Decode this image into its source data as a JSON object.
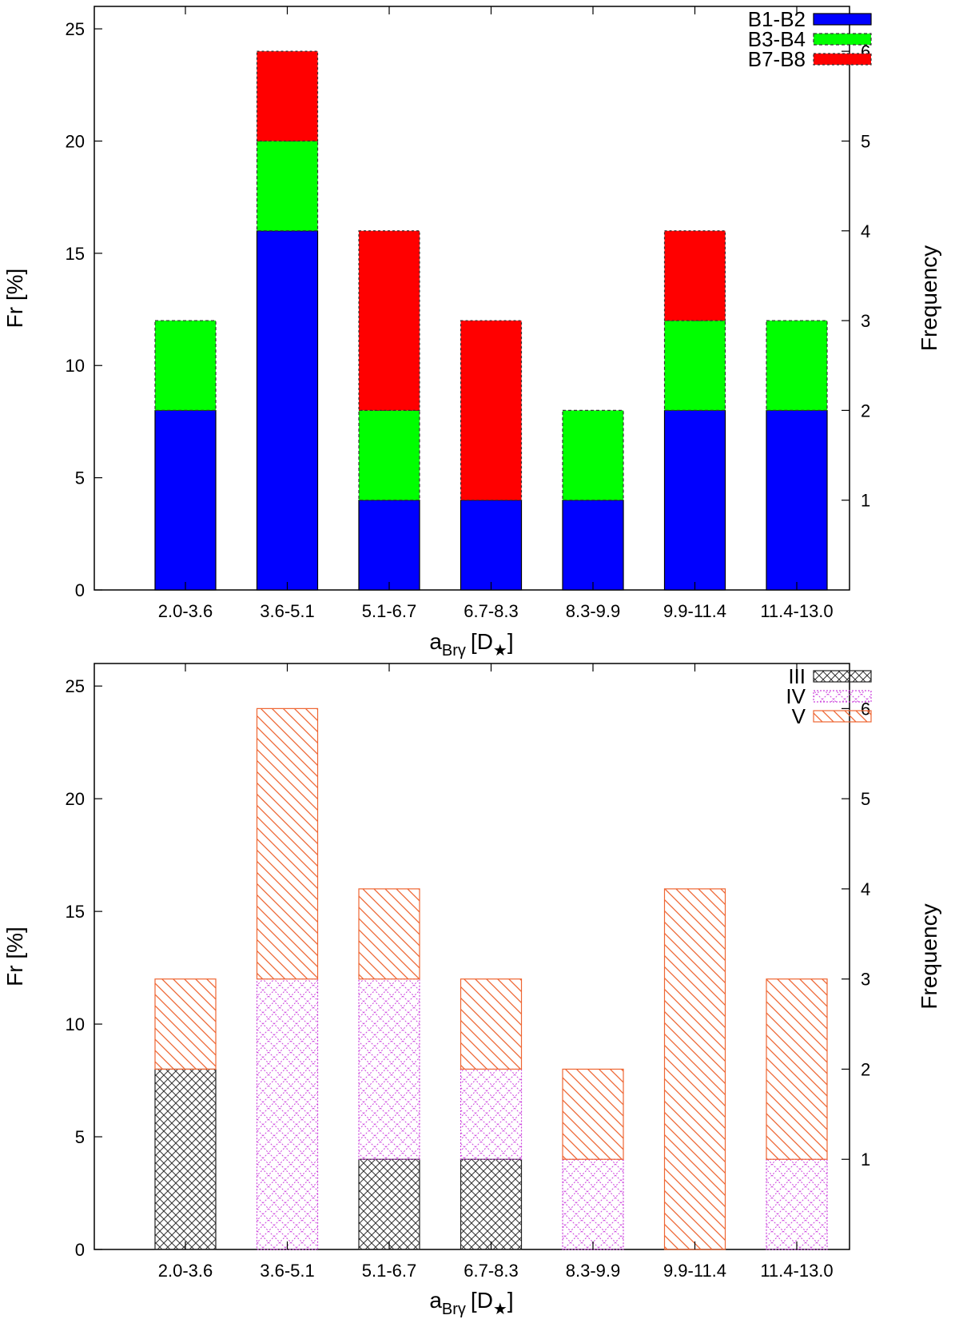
{
  "chart_data": [
    {
      "id": "top",
      "type": "bar",
      "stacked": true,
      "categories": [
        "2.0-3.6",
        "3.6-5.1",
        "5.1-6.7",
        "6.7-8.3",
        "8.3-9.9",
        "9.9-11.4",
        "11.4-13.0"
      ],
      "series": [
        {
          "name": "B1-B2",
          "key": "s1",
          "color": "#0000ff",
          "fill": "solid",
          "values": [
            8,
            16,
            4,
            4,
            4,
            8,
            8
          ]
        },
        {
          "name": "B3-B4",
          "key": "s2",
          "color": "#00ff00",
          "fill": "solid",
          "values": [
            4,
            4,
            4,
            0,
            4,
            4,
            4
          ]
        },
        {
          "name": "B7-B8",
          "key": "s3",
          "color": "#ff0000",
          "fill": "solid",
          "values": [
            0,
            4,
            8,
            8,
            0,
            4,
            0
          ]
        }
      ],
      "xlabel_main": "a",
      "xlabel_sub": "Brγ",
      "xlabel_unit": "[D",
      "xlabel_star": "★",
      "xlabel_close": "]",
      "ylabel": "Fr [%]",
      "y2label": "Frequency",
      "ylim": [
        0,
        26
      ],
      "yticks": [
        "0",
        "5",
        "10",
        "15",
        "20",
        "25"
      ],
      "y2ticks": [
        "1",
        "2",
        "3",
        "4",
        "5",
        "6"
      ],
      "legend": "top-right"
    },
    {
      "id": "bottom",
      "type": "bar",
      "stacked": true,
      "categories": [
        "2.0-3.6",
        "3.6-5.1",
        "5.1-6.7",
        "6.7-8.3",
        "8.3-9.9",
        "9.9-11.4",
        "11.4-13.0"
      ],
      "series": [
        {
          "name": "III",
          "key": "s4",
          "color": "#222222",
          "fill": "crosshatch",
          "values": [
            8,
            0,
            4,
            4,
            0,
            0,
            0
          ]
        },
        {
          "name": "IV",
          "key": "s5",
          "color": "#cc44dd",
          "fill": "dotted-crosshatch",
          "values": [
            0,
            12,
            8,
            4,
            4,
            0,
            4
          ]
        },
        {
          "name": "V",
          "key": "s6",
          "color": "#ee6633",
          "fill": "diagonal",
          "values": [
            4,
            12,
            4,
            4,
            4,
            16,
            8
          ]
        }
      ],
      "xlabel_main": "a",
      "xlabel_sub": "Brγ",
      "xlabel_unit": "[D",
      "xlabel_star": "★",
      "xlabel_close": "]",
      "ylabel": "Fr [%]",
      "y2label": "Frequency",
      "ylim": [
        0,
        26
      ],
      "yticks": [
        "0",
        "5",
        "10",
        "15",
        "20",
        "25"
      ],
      "y2ticks": [
        "1",
        "2",
        "3",
        "4",
        "5",
        "6"
      ],
      "legend": "top-right"
    }
  ]
}
